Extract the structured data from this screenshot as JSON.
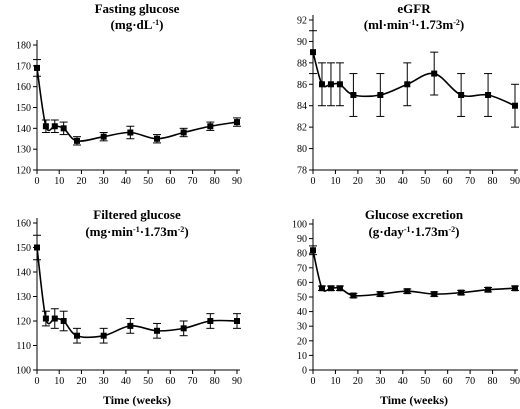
{
  "x_ticks": [
    "0",
    "10",
    "20",
    "30",
    "40",
    "50",
    "60",
    "70",
    "80",
    "90"
  ],
  "chart_data": [
    {
      "type": "line",
      "title": "Fasting glucose",
      "unit_html": "(mg<tspan>·</tspan>dL<tspan baseline-shift=\"super\" font-size=\"8\">-1</tspan>)",
      "xlabel": "",
      "ylim": [
        120,
        180
      ],
      "yticks": [
        "120",
        "130",
        "140",
        "150",
        "160",
        "170",
        "180"
      ],
      "xlim": [
        0,
        90
      ],
      "series": [
        {
          "x": [
            0,
            4,
            8,
            12,
            18,
            30,
            42,
            54,
            66,
            78,
            90
          ],
          "y": [
            169,
            141,
            141,
            140,
            134,
            136,
            138,
            135,
            138,
            141,
            143
          ],
          "err": [
            4,
            3,
            3,
            3,
            2,
            2,
            3,
            2,
            2,
            2,
            2
          ]
        }
      ]
    },
    {
      "type": "line",
      "title": "eGFR",
      "unit_html": "(ml<tspan>·</tspan>min<tspan baseline-shift=\"super\" font-size=\"8\">-1</tspan><tspan>·</tspan>1.73m<tspan baseline-shift=\"super\" font-size=\"8\">-2</tspan>)",
      "xlabel": "",
      "ylim": [
        78,
        92
      ],
      "yticks": [
        "78",
        "80",
        "82",
        "84",
        "86",
        "88",
        "90",
        "92"
      ],
      "xlim": [
        0,
        90
      ],
      "series": [
        {
          "x": [
            0,
            4,
            8,
            12,
            18,
            30,
            42,
            54,
            66,
            78,
            90
          ],
          "y": [
            89,
            86,
            86,
            86,
            85,
            85,
            86,
            87,
            85,
            85,
            84
          ],
          "err": [
            2,
            2,
            2,
            2,
            2,
            2,
            2,
            2,
            2,
            2,
            2
          ]
        }
      ]
    },
    {
      "type": "line",
      "title": "Filtered glucose",
      "unit_html": "(mg<tspan>·</tspan>min<tspan baseline-shift=\"super\" font-size=\"8\">-1</tspan><tspan>·</tspan>1.73m<tspan baseline-shift=\"super\" font-size=\"8\">-2</tspan>)",
      "xlabel": "Time (weeks)",
      "ylim": [
        100,
        160
      ],
      "yticks": [
        "100",
        "110",
        "120",
        "130",
        "140",
        "150",
        "160"
      ],
      "xlim": [
        0,
        90
      ],
      "series": [
        {
          "x": [
            0,
            4,
            8,
            12,
            18,
            30,
            42,
            54,
            66,
            78,
            90
          ],
          "y": [
            150,
            121,
            121,
            120,
            114,
            114,
            118,
            116,
            117,
            120,
            120
          ],
          "err": [
            5,
            3,
            4,
            4,
            3,
            3,
            3,
            3,
            3,
            3,
            3
          ]
        }
      ]
    },
    {
      "type": "line",
      "title": "Glucose excretion",
      "unit_html": "(g<tspan>·</tspan>day<tspan baseline-shift=\"super\" font-size=\"8\">-1</tspan><tspan>·</tspan>1.73m<tspan baseline-shift=\"super\" font-size=\"8\">-2</tspan>)",
      "xlabel": "Time (weeks)",
      "ylim": [
        0,
        100
      ],
      "yticks": [
        "0",
        "10",
        "20",
        "30",
        "40",
        "50",
        "60",
        "70",
        "80",
        "90",
        "100"
      ],
      "xlim": [
        0,
        90
      ],
      "series": [
        {
          "x": [
            0,
            4,
            8,
            12,
            18,
            30,
            42,
            54,
            66,
            78,
            90
          ],
          "y": [
            82,
            56,
            56,
            56,
            51,
            52,
            54,
            52,
            53,
            55,
            56
          ],
          "err": [
            3,
            1.5,
            1.5,
            1.5,
            1.5,
            1.5,
            1.5,
            1.5,
            1.5,
            1.5,
            1.5
          ]
        }
      ]
    }
  ]
}
